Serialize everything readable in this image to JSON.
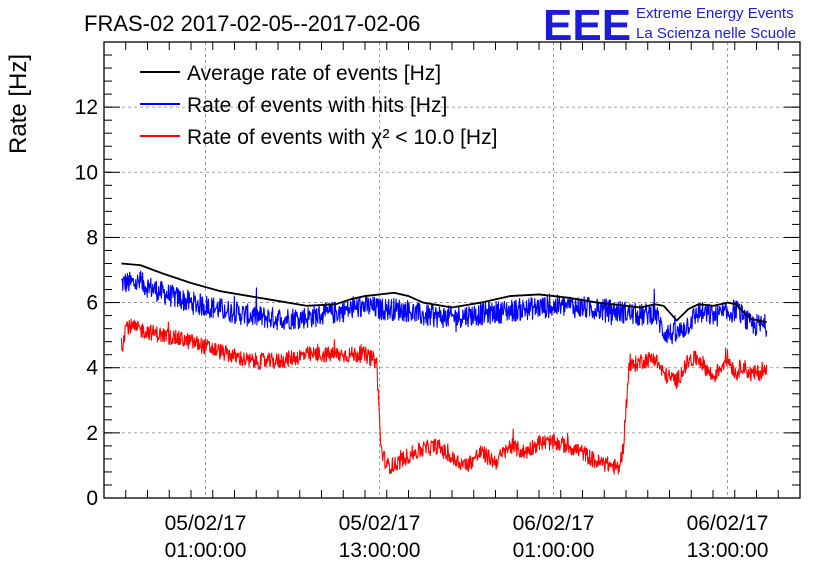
{
  "header": {
    "title": "FRAS-02 2017-02-05--2017-02-06",
    "logo_text": "EEE",
    "logo_line1": "Extreme Energy Events",
    "logo_line2": "La Scienza nelle Scuole"
  },
  "chart_data": {
    "type": "line",
    "title": "FRAS-02 2017-02-05--2017-02-06",
    "xlabel": "",
    "ylabel": "Rate [Hz]",
    "x_unit": "hours since 2017-02-05 00:00",
    "xlim": [
      -6,
      42
    ],
    "ylim": [
      0,
      14
    ],
    "yticks": [
      0,
      2,
      4,
      6,
      8,
      10,
      12
    ],
    "xticks": [
      {
        "x": 1,
        "line1": "05/02/17",
        "line2": "01:00:00"
      },
      {
        "x": 13,
        "line1": "05/02/17",
        "line2": "13:00:00"
      },
      {
        "x": 25,
        "line1": "06/02/17",
        "line2": "01:00:00"
      },
      {
        "x": 37,
        "line1": "06/02/17",
        "line2": "13:00:00"
      }
    ],
    "grid": true,
    "legend_position": "top-left",
    "series": [
      {
        "name": "Average rate of events [Hz]",
        "color": "#000000",
        "x": [
          -4.8,
          -3.5,
          -2,
          0,
          2,
          4,
          6,
          8,
          10,
          11,
          12,
          13,
          14,
          15,
          16,
          18,
          20,
          22,
          24,
          26,
          28,
          30,
          31,
          32,
          32.6,
          33.5,
          34.3,
          35,
          36,
          37,
          37.6,
          38,
          38.6,
          39.7
        ],
        "values": [
          7.2,
          7.15,
          6.9,
          6.6,
          6.35,
          6.2,
          6.05,
          5.9,
          5.95,
          6.1,
          6.2,
          6.25,
          6.3,
          6.2,
          6.0,
          5.85,
          6.0,
          6.2,
          6.25,
          6.15,
          6.0,
          5.9,
          5.85,
          5.95,
          5.9,
          5.45,
          5.8,
          5.95,
          5.9,
          6.0,
          5.95,
          5.75,
          5.5,
          5.4
        ]
      },
      {
        "name": "Rate of events with hits [Hz]",
        "color": "#0000ff",
        "x": [
          -4.8,
          -3.5,
          -2,
          0,
          2,
          4,
          6,
          8,
          10,
          11,
          12,
          13,
          14,
          15,
          16,
          18,
          20,
          22,
          24,
          26,
          28,
          30,
          31,
          32,
          32.6,
          33.5,
          34.3,
          35,
          36,
          37,
          37.6,
          38,
          38.6,
          39.7
        ],
        "values": [
          6.6,
          6.6,
          6.3,
          6.0,
          5.8,
          5.6,
          5.5,
          5.55,
          5.7,
          5.8,
          5.9,
          5.8,
          5.8,
          5.75,
          5.6,
          5.55,
          5.65,
          5.75,
          5.85,
          5.9,
          5.8,
          5.7,
          5.6,
          5.7,
          5.1,
          5.0,
          5.35,
          5.7,
          5.6,
          5.65,
          5.8,
          5.6,
          5.3,
          5.3
        ],
        "noise": 0.35
      },
      {
        "name": "Rate of events with χ² < 10.0 [Hz]",
        "color": "#ff0000",
        "x": [
          -4.8,
          -4.5,
          -3.8,
          -2,
          0,
          2,
          4,
          6,
          8,
          10,
          12,
          12.8,
          13.1,
          13.5,
          14,
          15,
          16,
          17,
          18,
          19,
          20,
          21,
          22,
          23,
          24,
          25,
          26,
          27,
          28,
          29,
          29.5,
          29.8,
          30.2,
          31,
          32,
          32.6,
          33.5,
          34.3,
          35,
          36,
          37,
          37.6,
          38,
          38.6,
          39.7
        ],
        "values": [
          4.5,
          5.3,
          5.2,
          5.0,
          4.8,
          4.5,
          4.2,
          4.2,
          4.4,
          4.4,
          4.4,
          4.2,
          1.5,
          1.0,
          1.0,
          1.3,
          1.5,
          1.6,
          1.2,
          1.0,
          1.4,
          1.1,
          1.6,
          1.4,
          1.7,
          1.7,
          1.6,
          1.4,
          1.1,
          1.0,
          0.9,
          1.5,
          4.0,
          4.2,
          4.3,
          3.8,
          3.6,
          4.2,
          4.3,
          3.7,
          4.3,
          3.8,
          4.1,
          3.8,
          3.9
        ],
        "noise": 0.25
      }
    ]
  }
}
